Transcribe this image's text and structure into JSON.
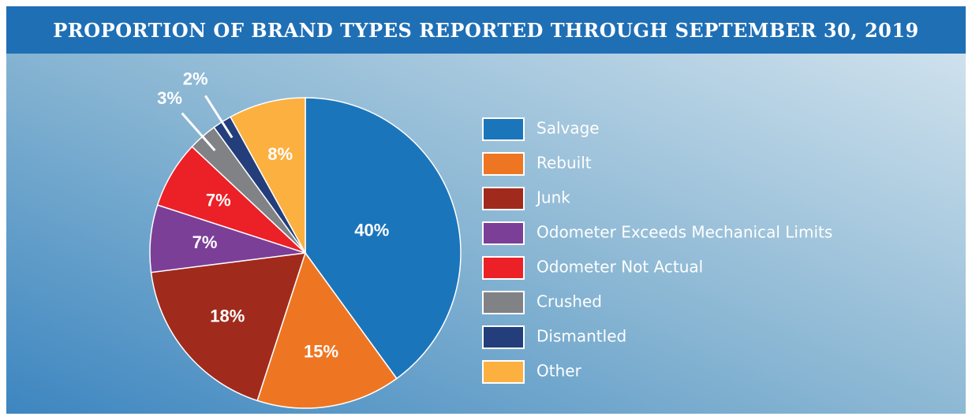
{
  "chart_data": {
    "type": "pie",
    "title": "PROPORTION OF BRAND TYPES REPORTED THROUGH SEPTEMBER 30, 2019",
    "categories": [
      "Salvage",
      "Rebuilt",
      "Junk",
      "Odometer Exceeds Mechanical Limits",
      "Odometer Not Actual",
      "Crushed",
      "Dismantled",
      "Other"
    ],
    "values": [
      40,
      15,
      18,
      7,
      7,
      3,
      2,
      8
    ],
    "value_labels": [
      "40%",
      "15%",
      "18%",
      "7%",
      "7%",
      "3%",
      "2%",
      "8%"
    ],
    "colors": [
      "#1b75bb",
      "#ee7623",
      "#a02b1d",
      "#7c3f98",
      "#ec2027",
      "#808285",
      "#233e7a",
      "#fbb040"
    ],
    "legend": "right"
  }
}
